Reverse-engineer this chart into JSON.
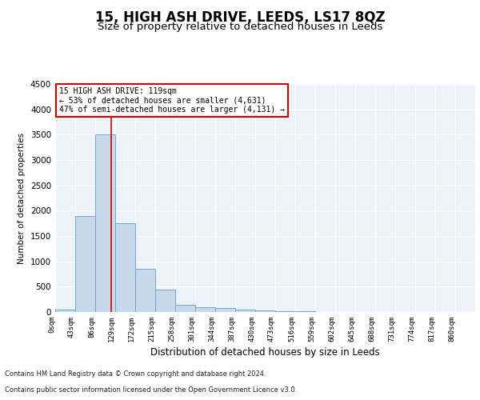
{
  "title": "15, HIGH ASH DRIVE, LEEDS, LS17 8QZ",
  "subtitle": "Size of property relative to detached houses in Leeds",
  "xlabel": "Distribution of detached houses by size in Leeds",
  "ylabel": "Number of detached properties",
  "bar_labels": [
    "0sqm",
    "43sqm",
    "86sqm",
    "129sqm",
    "172sqm",
    "215sqm",
    "258sqm",
    "301sqm",
    "344sqm",
    "387sqm",
    "430sqm",
    "473sqm",
    "516sqm",
    "559sqm",
    "602sqm",
    "645sqm",
    "688sqm",
    "731sqm",
    "774sqm",
    "817sqm",
    "860sqm"
  ],
  "bar_values": [
    50,
    1900,
    3500,
    1750,
    850,
    450,
    150,
    100,
    75,
    55,
    30,
    15,
    8,
    5,
    3,
    2,
    1,
    1,
    0,
    0,
    0
  ],
  "bar_color": "#c9d9ec",
  "bar_edge_color": "#6fa8d0",
  "ylim": [
    0,
    4500
  ],
  "yticks": [
    0,
    500,
    1000,
    1500,
    2000,
    2500,
    3000,
    3500,
    4000,
    4500
  ],
  "vline_x": 2.79,
  "vline_color": "#cc0000",
  "annotation_text": "15 HIGH ASH DRIVE: 119sqm\n← 53% of detached houses are smaller (4,631)\n47% of semi-detached houses are larger (4,131) →",
  "annotation_box_color": "#cc0000",
  "footer_line1": "Contains HM Land Registry data © Crown copyright and database right 2024.",
  "footer_line2": "Contains public sector information licensed under the Open Government Licence v3.0.",
  "background_color": "#eef2f9",
  "grid_color": "#ffffff",
  "title_fontsize": 12,
  "subtitle_fontsize": 9.5
}
